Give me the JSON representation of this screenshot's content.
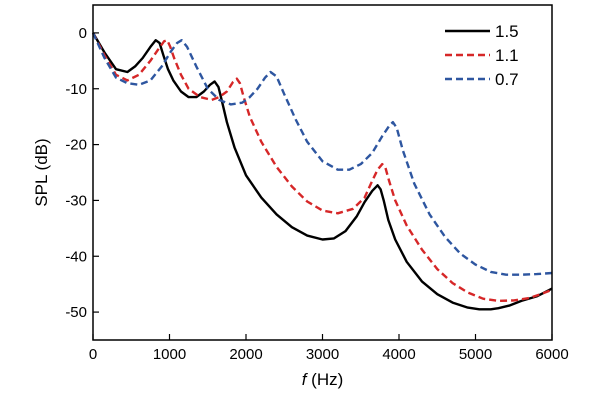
{
  "chart_data": {
    "type": "line",
    "xlabel_italic": "f",
    "xlabel_rest": " (Hz)",
    "ylabel": "SPL (dB)",
    "xlim": [
      0,
      6000
    ],
    "ylim": [
      -55,
      5
    ],
    "xticks": [
      0,
      1000,
      2000,
      3000,
      4000,
      5000,
      6000
    ],
    "yticks": [
      0,
      -10,
      -20,
      -30,
      -40,
      -50
    ],
    "grid": false,
    "legend_position": "top-right",
    "series": [
      {
        "name": "1.5",
        "color": "#000000",
        "dash": "solid",
        "x": [
          0,
          150,
          300,
          450,
          550,
          650,
          750,
          820,
          870,
          920,
          980,
          1050,
          1150,
          1250,
          1350,
          1450,
          1530,
          1590,
          1640,
          1690,
          1750,
          1850,
          2000,
          2200,
          2400,
          2600,
          2800,
          3000,
          3150,
          3300,
          3450,
          3550,
          3650,
          3720,
          3760,
          3800,
          3860,
          3950,
          4100,
          4300,
          4500,
          4700,
          4900,
          5050,
          5200,
          5300,
          5450,
          5600,
          5800,
          6000
        ],
        "y": [
          0,
          -3.5,
          -6.5,
          -7,
          -6,
          -4.5,
          -2.5,
          -1.3,
          -1.8,
          -4,
          -6.5,
          -8.5,
          -10.5,
          -11.5,
          -11.5,
          -10.5,
          -9.3,
          -8.7,
          -9.7,
          -12.5,
          -16,
          -20.5,
          -25.5,
          -29.5,
          -32.5,
          -34.8,
          -36.3,
          -37,
          -36.8,
          -35.5,
          -32.8,
          -30.3,
          -28.3,
          -27.3,
          -28,
          -30,
          -33.5,
          -37,
          -41,
          -44.5,
          -46.8,
          -48.3,
          -49.2,
          -49.5,
          -49.5,
          -49.3,
          -48.8,
          -48,
          -47.2,
          -45.8
        ]
      },
      {
        "name": "1.1",
        "color": "#d62728",
        "dash": "dashed",
        "x": [
          0,
          150,
          300,
          450,
          600,
          750,
          850,
          930,
          970,
          1010,
          1060,
          1150,
          1250,
          1400,
          1550,
          1650,
          1750,
          1830,
          1880,
          1920,
          1970,
          2050,
          2200,
          2400,
          2600,
          2800,
          3000,
          3200,
          3400,
          3550,
          3650,
          3720,
          3780,
          3820,
          3870,
          3950,
          4100,
          4300,
          4500,
          4700,
          4900,
          5100,
          5300,
          5500,
          5700,
          5850,
          6000
        ],
        "y": [
          0,
          -4,
          -7.5,
          -8.5,
          -7.5,
          -5,
          -3,
          -1.5,
          -1.3,
          -2.5,
          -4.5,
          -7.5,
          -10,
          -11.5,
          -12,
          -11.5,
          -10.5,
          -8.8,
          -8.2,
          -9,
          -11.5,
          -15,
          -19.5,
          -24,
          -27.5,
          -30.2,
          -31.8,
          -32.3,
          -31.5,
          -29.5,
          -26.5,
          -24.5,
          -23.5,
          -24,
          -26.5,
          -30,
          -34.5,
          -38.8,
          -42.3,
          -44.8,
          -46.5,
          -47.6,
          -48,
          -47.9,
          -47.5,
          -46.8,
          -46
        ]
      },
      {
        "name": "0.7",
        "color": "#2e56a0",
        "dash": "dashed",
        "x": [
          0,
          150,
          300,
          450,
          600,
          750,
          900,
          1020,
          1100,
          1160,
          1230,
          1350,
          1500,
          1650,
          1800,
          1950,
          2050,
          2150,
          2250,
          2320,
          2400,
          2500,
          2650,
          2800,
          3000,
          3200,
          3350,
          3500,
          3650,
          3780,
          3880,
          3920,
          3970,
          4050,
          4200,
          4400,
          4600,
          4800,
          5000,
          5200,
          5400,
          5600,
          5800,
          6000
        ],
        "y": [
          0,
          -4.5,
          -8,
          -9,
          -9.3,
          -8.5,
          -6,
          -3.3,
          -1.8,
          -1.3,
          -2.5,
          -6,
          -10,
          -12,
          -12.8,
          -12.5,
          -11.5,
          -10,
          -8,
          -7,
          -7.8,
          -11,
          -15.5,
          -19.5,
          -23,
          -24.5,
          -24.5,
          -23.5,
          -21.5,
          -18.5,
          -16.5,
          -16,
          -17,
          -21,
          -27,
          -32.5,
          -36.5,
          -39.5,
          -41.5,
          -42.8,
          -43.3,
          -43.3,
          -43.2,
          -43
        ]
      }
    ]
  }
}
